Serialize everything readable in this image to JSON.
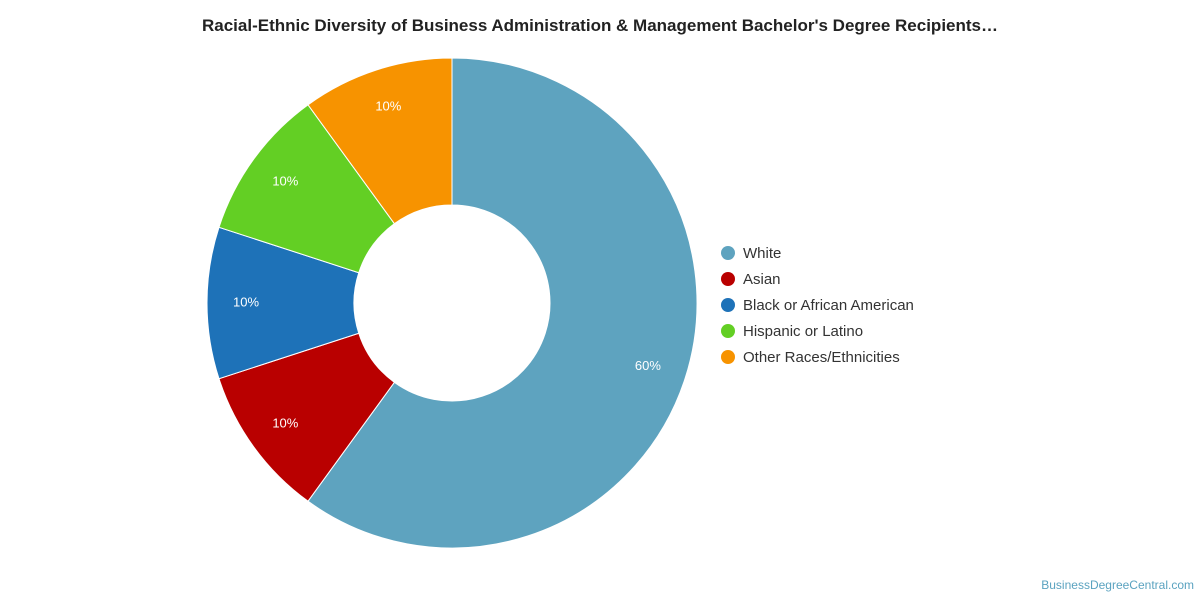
{
  "chart_data": {
    "type": "pie",
    "title": "Racial-Ethnic Diversity of Business Administration & Management Bachelor's Degree Recipients…",
    "donut": true,
    "legend_position": "right",
    "slices": [
      {
        "name": "White",
        "value": 60,
        "label": "60%",
        "color": "#5ea3bf"
      },
      {
        "name": "Asian",
        "value": 10,
        "label": "10%",
        "color": "#b90000"
      },
      {
        "name": "Black or African American",
        "value": 10,
        "label": "10%",
        "color": "#1e72b8"
      },
      {
        "name": "Hispanic or Latino",
        "value": 10,
        "label": "10%",
        "color": "#63cf24"
      },
      {
        "name": "Other Races/Ethnicities",
        "value": 10,
        "label": "10%",
        "color": "#f79300"
      }
    ]
  },
  "credit": {
    "text": "BusinessDegreeCentral.com"
  }
}
